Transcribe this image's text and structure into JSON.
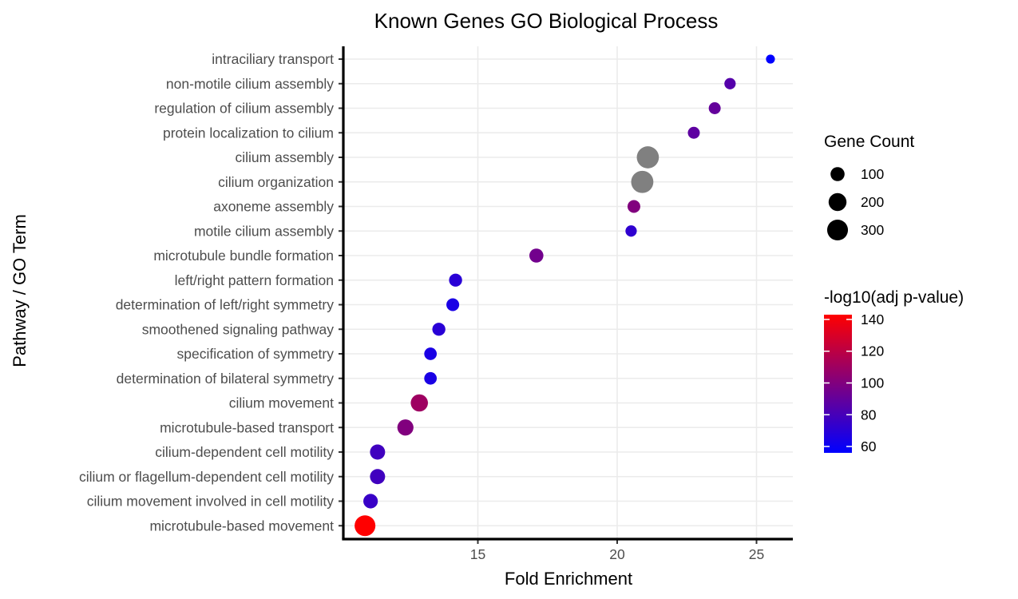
{
  "chart_data": {
    "type": "scatter",
    "title": "Known Genes GO Biological Process",
    "xlabel": "Fold Enrichment",
    "ylabel": "Pathway / GO Term",
    "xlim": [
      10.5,
      26.3
    ],
    "xticks": [
      15,
      20,
      25
    ],
    "grid": true,
    "legend_placement": "right",
    "color_scale": {
      "title": "-log10(adj p-value)",
      "low_color": "#0000ff",
      "high_color": "#ff0000",
      "min": 56,
      "max": 143,
      "ticks": [
        60,
        80,
        100,
        120,
        140
      ]
    },
    "size_scale": {
      "title": "Gene Count",
      "ticks": [
        100,
        200,
        300
      ]
    },
    "na_color": "#808080",
    "points": [
      {
        "term": "intraciliary transport",
        "fold_enrichment": 25.5,
        "gene_count": 20,
        "neg_log10_padj": 56
      },
      {
        "term": "non-motile cilium assembly",
        "fold_enrichment": 24.05,
        "gene_count": 50,
        "neg_log10_padj": 85
      },
      {
        "term": "regulation of cilium assembly",
        "fold_enrichment": 23.5,
        "gene_count": 60,
        "neg_log10_padj": 90
      },
      {
        "term": "protein localization to cilium",
        "fold_enrichment": 22.75,
        "gene_count": 60,
        "neg_log10_padj": 88
      },
      {
        "term": "cilium assembly",
        "fold_enrichment": 21.1,
        "gene_count": 350,
        "neg_log10_padj": null
      },
      {
        "term": "cilium organization",
        "fold_enrichment": 20.9,
        "gene_count": 355,
        "neg_log10_padj": null
      },
      {
        "term": "axoneme assembly",
        "fold_enrichment": 20.6,
        "gene_count": 75,
        "neg_log10_padj": 100
      },
      {
        "term": "motile cilium assembly",
        "fold_enrichment": 20.5,
        "gene_count": 50,
        "neg_log10_padj": 72
      },
      {
        "term": "microtubule bundle formation",
        "fold_enrichment": 17.1,
        "gene_count": 100,
        "neg_log10_padj": 95
      },
      {
        "term": "left/right pattern formation",
        "fold_enrichment": 14.2,
        "gene_count": 80,
        "neg_log10_padj": 70
      },
      {
        "term": "determination of left/right symmetry",
        "fold_enrichment": 14.1,
        "gene_count": 75,
        "neg_log10_padj": 65
      },
      {
        "term": "smoothened signaling pathway",
        "fold_enrichment": 13.6,
        "gene_count": 80,
        "neg_log10_padj": 70
      },
      {
        "term": "specification of symmetry",
        "fold_enrichment": 13.3,
        "gene_count": 70,
        "neg_log10_padj": 65
      },
      {
        "term": "determination of bilateral symmetry",
        "fold_enrichment": 13.3,
        "gene_count": 70,
        "neg_log10_padj": 65
      },
      {
        "term": "cilium movement",
        "fold_enrichment": 12.9,
        "gene_count": 180,
        "neg_log10_padj": 110
      },
      {
        "term": "microtubule-based transport",
        "fold_enrichment": 12.4,
        "gene_count": 150,
        "neg_log10_padj": 100
      },
      {
        "term": "cilium-dependent cell motility",
        "fold_enrichment": 11.4,
        "gene_count": 125,
        "neg_log10_padj": 78
      },
      {
        "term": "cilium or flagellum-dependent cell motility",
        "fold_enrichment": 11.4,
        "gene_count": 125,
        "neg_log10_padj": 78
      },
      {
        "term": "cilium movement involved in cell motility",
        "fold_enrichment": 11.15,
        "gene_count": 110,
        "neg_log10_padj": 75
      },
      {
        "term": "microtubule-based movement",
        "fold_enrichment": 10.95,
        "gene_count": 300,
        "neg_log10_padj": 143
      }
    ]
  }
}
